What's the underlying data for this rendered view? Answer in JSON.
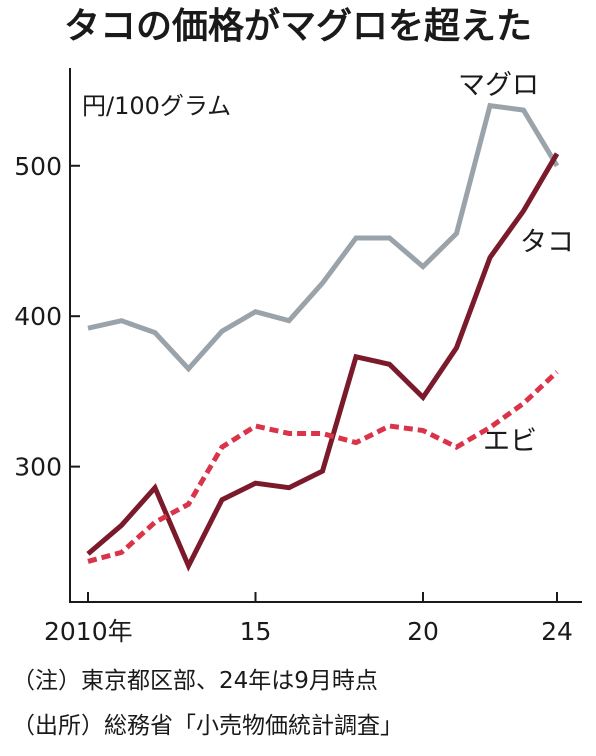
{
  "chart_data": {
    "type": "line",
    "title": "タコの価格がマグロを超えた",
    "unit_label": "円/100グラム",
    "x": [
      2010,
      2011,
      2012,
      2013,
      2014,
      2015,
      2016,
      2017,
      2018,
      2019,
      2020,
      2021,
      2022,
      2023,
      2024
    ],
    "x_ticks": [
      {
        "value": 2010,
        "label": "2010年"
      },
      {
        "value": 2015,
        "label": "15"
      },
      {
        "value": 2020,
        "label": "20"
      },
      {
        "value": 2024,
        "label": "24"
      }
    ],
    "y_ticks": [
      300,
      400,
      500
    ],
    "ylim": [
      210,
      565
    ],
    "grid": false,
    "series": [
      {
        "name": "マグロ",
        "color": "#9aa3aa",
        "dash": "solid",
        "values": [
          392,
          397,
          389,
          365,
          390,
          403,
          397,
          422,
          452,
          452,
          433,
          455,
          540,
          537,
          500
        ]
      },
      {
        "name": "タコ",
        "color": "#7a1a2a",
        "dash": "solid",
        "values": [
          242,
          261,
          286,
          234,
          278,
          289,
          286,
          297,
          373,
          368,
          346,
          379,
          439,
          470,
          508
        ]
      },
      {
        "name": "エビ",
        "color": "#d9344a",
        "dash": "dashed",
        "values": [
          237,
          243,
          263,
          275,
          313,
          327,
          322,
          322,
          316,
          327,
          324,
          313,
          326,
          342,
          363
        ]
      }
    ]
  },
  "notes": {
    "note1": "（注）東京都区部、24年は9月時点",
    "note2": "（出所）総務省「小売物価統計調査」"
  }
}
